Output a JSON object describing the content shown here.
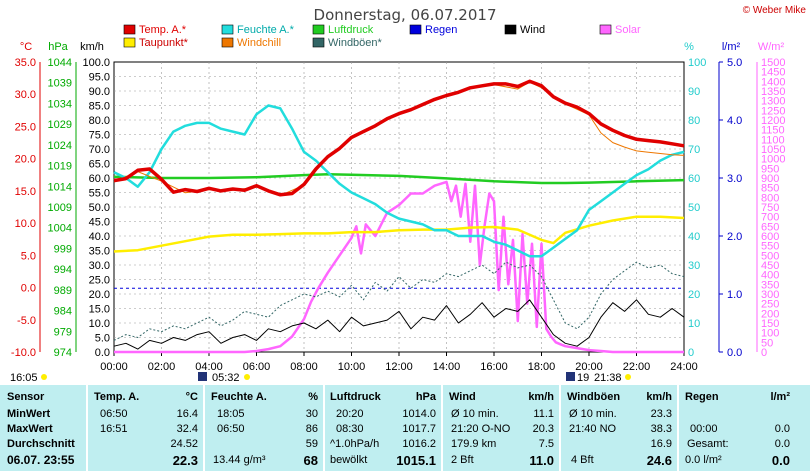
{
  "header": {
    "title": "Donnerstag, 06.07.2017",
    "credit": "© Weber Mike"
  },
  "legend": [
    {
      "label": "Temp. A.*",
      "color": "#e00000"
    },
    {
      "label": "Feuchte A.*",
      "color": "#22dddd"
    },
    {
      "label": "Luftdruck",
      "color": "#22cc22"
    },
    {
      "label": "Regen",
      "color": "#0000dd"
    },
    {
      "label": "Wind",
      "color": "#000000"
    },
    {
      "label": "Solar",
      "color": "#ff66ff"
    },
    {
      "label": "Taupunkt*",
      "color": "#ffee00"
    },
    {
      "label": "Windchill",
      "color": "#ee7700"
    },
    {
      "label": "Windböen*",
      "color": "#336666"
    }
  ],
  "axis_units": {
    "temp": "°C",
    "pressure": "hPa",
    "wind": "km/h",
    "humidity": "%",
    "rain": "l/m²",
    "solar": "W/m²"
  },
  "footer": {
    "time": "16:05",
    "sunrise": "05:32",
    "sunset": "21:38",
    "moon": "19"
  },
  "chart_data": {
    "type": "line",
    "x_ticks": [
      "00:00",
      "02:00",
      "04:00",
      "06:00",
      "08:00",
      "10:00",
      "12:00",
      "14:00",
      "16:00",
      "18:00",
      "20:00",
      "22:00",
      "24:00"
    ],
    "x_range_hours": [
      0,
      24
    ],
    "axes": {
      "temp": {
        "min": -10,
        "max": 35,
        "ticks": [
          "35.0",
          "30.0",
          "25.0",
          "20.0",
          "15.0",
          "10.0",
          "5.0",
          "0.0",
          "-5.0",
          "-10.0"
        ]
      },
      "pressure": {
        "min": 974,
        "max": 1044,
        "ticks": [
          "1044",
          "1039",
          "1034",
          "1029",
          "1024",
          "1019",
          "1014",
          "1009",
          "1004",
          "999",
          "994",
          "989",
          "984",
          "979",
          "974"
        ]
      },
      "wind": {
        "min": 0,
        "max": 100,
        "ticks": [
          "100.0",
          "95.0",
          "90.0",
          "85.0",
          "80.0",
          "75.0",
          "70.0",
          "65.0",
          "60.0",
          "55.0",
          "50.0",
          "45.0",
          "40.0",
          "35.0",
          "30.0",
          "25.0",
          "20.0",
          "15.0",
          "10.0",
          "5.0",
          "0.0"
        ]
      },
      "humidity": {
        "min": 0,
        "max": 100,
        "ticks": [
          "100",
          "90",
          "80",
          "70",
          "60",
          "50",
          "40",
          "30",
          "20",
          "10",
          "0"
        ]
      },
      "rain": {
        "min": 0,
        "max": 5,
        "ticks": [
          "5.0",
          "4.0",
          "3.0",
          "2.0",
          "1.0",
          "0.0"
        ]
      },
      "solar": {
        "min": 0,
        "max": 1500,
        "ticks": [
          "1500",
          "1450",
          "1400",
          "1350",
          "1300",
          "1250",
          "1200",
          "1150",
          "1100",
          "1050",
          "1000",
          "950",
          "900",
          "850",
          "800",
          "750",
          "700",
          "650",
          "600",
          "550",
          "500",
          "450",
          "400",
          "350",
          "300",
          "250",
          "200",
          "150",
          "100",
          "50",
          "0"
        ]
      }
    },
    "grid": true,
    "series": [
      {
        "name": "Temp. A.*",
        "axis": "temp",
        "color": "#e00000",
        "width": 3.5,
        "x": [
          0,
          0.5,
          1,
          1.5,
          2,
          2.5,
          3,
          3.5,
          4,
          4.5,
          5,
          5.5,
          6,
          6.5,
          7,
          7.5,
          8,
          8.5,
          9,
          9.5,
          10,
          10.5,
          11,
          11.5,
          12,
          12.5,
          13,
          13.5,
          14,
          14.5,
          15,
          15.5,
          16,
          16.5,
          17,
          17.5,
          18,
          18.5,
          19,
          19.5,
          20,
          20.5,
          21,
          21.5,
          22,
          22.5,
          23,
          23.5,
          24
        ],
        "y": [
          16.6,
          16.9,
          18.2,
          18.4,
          16.8,
          14.8,
          15.2,
          14.9,
          15.4,
          15.0,
          15.3,
          15.1,
          15.8,
          15.0,
          14.4,
          14.6,
          16.0,
          18.4,
          20.3,
          21.6,
          23.3,
          24.2,
          25.1,
          26.2,
          27.0,
          27.6,
          28.4,
          29.2,
          29.8,
          30.3,
          31.0,
          31.3,
          31.6,
          31.6,
          31.2,
          32.0,
          31.3,
          29.6,
          28.6,
          28.0,
          27.0,
          25.4,
          24.4,
          23.6,
          23.0,
          22.8,
          22.6,
          22.3,
          22.0
        ]
      },
      {
        "name": "Windchill",
        "axis": "temp",
        "color": "#ee7700",
        "width": 1,
        "x": [
          0,
          1,
          2,
          3,
          4,
          5,
          6,
          7,
          8,
          9,
          10,
          11,
          12,
          13,
          14,
          15,
          16,
          17,
          17.5,
          18,
          19,
          20,
          20.5,
          21,
          21.5,
          22,
          22.5,
          23,
          23.5,
          24
        ],
        "y": [
          16.4,
          18.0,
          16.5,
          14.7,
          15.2,
          15.1,
          15.6,
          14.3,
          15.9,
          20.3,
          23.3,
          25.1,
          26.9,
          28.4,
          29.8,
          30.9,
          31.5,
          30.8,
          31.9,
          31.0,
          28.5,
          26.8,
          24.0,
          22.5,
          21.8,
          21.2,
          21.0,
          20.8,
          20.6,
          20.5
        ]
      },
      {
        "name": "Taupunkt*",
        "axis": "temp",
        "color": "#ffee00",
        "width": 2.5,
        "x": [
          0,
          1,
          2,
          3,
          4,
          5,
          6,
          7,
          8,
          9,
          10,
          11,
          12,
          13,
          14,
          15,
          16,
          17,
          18,
          18.5,
          19,
          20,
          21,
          22,
          23,
          24
        ],
        "y": [
          5.6,
          5.8,
          6.5,
          7.2,
          7.9,
          8.2,
          8.2,
          8.3,
          8.4,
          8.4,
          8.6,
          8.6,
          8.9,
          9.0,
          9.0,
          9.3,
          9.4,
          9.0,
          7.4,
          6.9,
          8.5,
          9.6,
          10.4,
          11.0,
          11.0,
          10.8
        ]
      },
      {
        "name": "Feuchte A.*",
        "axis": "humidity",
        "color": "#22dddd",
        "width": 2.5,
        "x": [
          0,
          0.5,
          1,
          1.5,
          2,
          2.5,
          3,
          3.5,
          4,
          4.5,
          5,
          5.5,
          6,
          6.5,
          7,
          7.5,
          8,
          8.5,
          9,
          9.5,
          10,
          10.5,
          11,
          11.5,
          12,
          12.5,
          13,
          13.5,
          14,
          14.5,
          15,
          15.5,
          16,
          16.5,
          17,
          17.5,
          18,
          18.5,
          19,
          19.5,
          20,
          20.5,
          21,
          21.5,
          22,
          22.5,
          23,
          23.5,
          24
        ],
        "y": [
          62,
          60,
          57,
          62,
          70,
          76,
          78,
          79,
          79,
          77,
          76,
          75,
          82,
          85,
          84,
          77,
          69,
          66,
          62,
          58,
          55,
          53,
          51,
          48,
          46,
          45,
          44,
          42,
          42,
          40,
          40,
          40,
          38,
          37,
          35,
          33,
          33,
          36,
          39,
          42,
          49,
          52,
          55,
          58,
          61,
          63,
          66,
          68,
          69
        ]
      },
      {
        "name": "Luftdruck",
        "axis": "pressure",
        "color": "#22cc22",
        "width": 2.5,
        "x": [
          0,
          2,
          4,
          6,
          8,
          9,
          10,
          12,
          14,
          16,
          18,
          19,
          20,
          22,
          24
        ],
        "y": [
          1016.3,
          1016.0,
          1016.0,
          1016.2,
          1016.7,
          1016.9,
          1016.8,
          1016.5,
          1015.9,
          1015.2,
          1014.8,
          1014.8,
          1014.9,
          1015.2,
          1015.5
        ]
      },
      {
        "name": "Windböen*",
        "axis": "wind",
        "color": "#336666",
        "width": 1,
        "dash": "2,2",
        "x": [
          0,
          0.5,
          1,
          1.5,
          2,
          2.5,
          3,
          3.5,
          4,
          4.5,
          5,
          5.5,
          6,
          6.5,
          7,
          7.5,
          8,
          8.5,
          9,
          9.5,
          10,
          10.5,
          11,
          11.5,
          12,
          12.5,
          13,
          13.5,
          14,
          14.5,
          15,
          15.5,
          16,
          16.5,
          17,
          17.5,
          18,
          18.5,
          19,
          19.5,
          20,
          20.5,
          21,
          21.5,
          22,
          22.5,
          23,
          23.5,
          24
        ],
        "y": [
          4,
          6,
          5,
          8,
          7,
          9,
          8,
          10,
          12,
          9,
          11,
          14,
          13,
          12,
          16,
          18,
          20,
          19,
          21,
          19,
          23,
          18,
          24,
          21,
          26,
          22,
          25,
          24,
          27,
          26,
          28,
          30,
          27,
          31,
          29,
          30,
          26,
          18,
          10,
          8,
          12,
          20,
          25,
          28,
          31,
          29,
          30,
          27,
          26
        ]
      },
      {
        "name": "Wind",
        "axis": "wind",
        "color": "#000000",
        "width": 1,
        "x": [
          0,
          0.5,
          1,
          1.5,
          2,
          2.5,
          3,
          3.5,
          4,
          4.5,
          5,
          5.5,
          6,
          6.5,
          7,
          7.5,
          8,
          8.5,
          9,
          9.5,
          10,
          10.5,
          11,
          11.5,
          12,
          12.5,
          13,
          13.5,
          14,
          14.5,
          15,
          15.5,
          16,
          16.5,
          17,
          17.5,
          18,
          18.5,
          19,
          19.5,
          20,
          20.5,
          21,
          21.5,
          22,
          22.5,
          23,
          23.5,
          24
        ],
        "y": [
          2,
          3,
          1,
          4,
          3,
          5,
          4,
          6,
          7,
          3,
          5,
          6,
          4,
          8,
          7,
          9,
          10,
          8,
          11,
          7,
          12,
          9,
          10,
          11,
          14,
          8,
          12,
          11,
          16,
          10,
          13,
          17,
          12,
          15,
          14,
          18,
          12,
          6,
          3,
          2,
          5,
          12,
          17,
          14,
          18,
          13,
          12,
          15,
          12
        ]
      },
      {
        "name": "Solar",
        "axis": "solar",
        "color": "#ff66ff",
        "width": 2.5,
        "x": [
          0,
          5.5,
          6,
          6.5,
          7,
          7.5,
          8,
          8.3,
          8.6,
          9,
          9.5,
          10,
          10.2,
          10.4,
          10.6,
          11,
          11.5,
          12,
          12.5,
          13,
          13.5,
          14,
          14.2,
          14.4,
          14.6,
          14.8,
          15,
          15.2,
          15.4,
          15.6,
          15.8,
          16,
          16.2,
          16.4,
          16.6,
          16.8,
          17,
          17.2,
          17.4,
          17.6,
          17.8,
          18,
          18.2,
          18.4,
          18.6,
          18.8,
          19,
          19.5,
          20,
          20.5,
          21,
          24
        ],
        "y": [
          0,
          0,
          5,
          15,
          30,
          80,
          170,
          260,
          330,
          410,
          500,
          590,
          650,
          510,
          660,
          600,
          720,
          760,
          820,
          820,
          860,
          880,
          780,
          860,
          700,
          870,
          570,
          860,
          450,
          650,
          820,
          780,
          320,
          700,
          350,
          580,
          160,
          610,
          250,
          560,
          130,
          560,
          120,
          80,
          50,
          40,
          30,
          20,
          10,
          5,
          0,
          0
        ]
      }
    ],
    "reference_lines": [
      {
        "axis": "rain",
        "value": 1.1,
        "color": "#0000dd",
        "style": "dashed"
      }
    ]
  },
  "stats": {
    "headers": [
      {
        "label": "Sensor",
        "unit": ""
      },
      {
        "label": "Temp. A.",
        "unit": "°C"
      },
      {
        "label": "Feuchte A.",
        "unit": "%"
      },
      {
        "label": "Luftdruck",
        "unit": "hPa"
      },
      {
        "label": "Wind",
        "unit": "km/h"
      },
      {
        "label": "Windböen",
        "unit": "km/h"
      },
      {
        "label": "Regen",
        "unit": "l/m²"
      }
    ],
    "rows": [
      {
        "label": "MinWert",
        "cells": [
          [
            "06:50",
            "16.4"
          ],
          [
            "18:05",
            "30"
          ],
          [
            "20:20",
            "1014.0"
          ],
          [
            "Ø 10 min.",
            "11.1"
          ],
          [
            "Ø 10 min.",
            "23.3"
          ],
          [
            "",
            ""
          ]
        ]
      },
      {
        "label": "MaxWert",
        "cells": [
          [
            "16:51",
            "32.4"
          ],
          [
            "06:50",
            "86"
          ],
          [
            "08:30",
            "1017.7"
          ],
          [
            "21:20  O-NO",
            "20.3"
          ],
          [
            "21:40  NO",
            "38.3"
          ],
          [
            "00:00",
            "0.0"
          ]
        ]
      },
      {
        "label": "Durchschnitt",
        "cells": [
          [
            "",
            "24.52"
          ],
          [
            "",
            "59"
          ],
          [
            "^1.0hPa/h",
            "1016.2"
          ],
          [
            "179.9 km",
            "7.5"
          ],
          [
            "",
            "16.9"
          ],
          [
            "Gesamt:",
            "0.0"
          ]
        ]
      },
      {
        "label": "06.07. 23:55",
        "cells": [
          [
            "",
            "22.3"
          ],
          [
            "13.44 g/m³",
            "68"
          ],
          [
            "bewölkt",
            "1015.1"
          ],
          [
            "2 Bft",
            "11.0"
          ],
          [
            "4 Bft",
            "24.6"
          ],
          [
            "0.0 l/m²",
            "0.0"
          ]
        ]
      }
    ]
  }
}
